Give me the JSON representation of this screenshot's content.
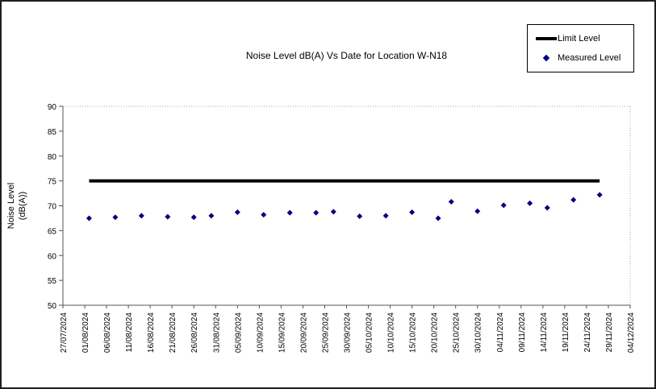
{
  "chart_data": {
    "type": "scatter",
    "title": "Noise Level dB(A) Vs Date for Location W-N18",
    "xlabel": "",
    "ylabel_lines": [
      "Noise Level",
      "(dB(A))"
    ],
    "ylim": [
      50,
      90
    ],
    "ytick_labels": [
      "50",
      "55",
      "60",
      "65",
      "70",
      "75",
      "80",
      "85",
      "90"
    ],
    "x_axis_start": "27/07/2024",
    "x_axis_end": "04/12/2024",
    "x_tick_labels": [
      "27/07/2024",
      "01/08/2024",
      "06/08/2024",
      "11/08/2024",
      "16/08/2024",
      "21/08/2024",
      "26/08/2024",
      "31/08/2024",
      "05/09/2024",
      "10/09/2024",
      "15/09/2024",
      "20/09/2024",
      "25/09/2024",
      "30/09/2024",
      "05/10/2024",
      "10/10/2024",
      "15/10/2024",
      "20/10/2024",
      "25/10/2024",
      "30/10/2024",
      "04/11/2024",
      "09/11/2024",
      "14/11/2024",
      "19/11/2024",
      "24/11/2024",
      "29/11/2024",
      "04/12/2024"
    ],
    "grid": false,
    "legend_position": "top-right",
    "series": [
      {
        "name": "Limit Level",
        "render": "line",
        "color": "#000000",
        "x": [
          "02/08/2024",
          "27/11/2024"
        ],
        "values": [
          75,
          75
        ]
      },
      {
        "name": "Measured Level",
        "render": "scatter",
        "marker": "diamond",
        "color": "#000080",
        "x": [
          "02/08/2024",
          "08/08/2024",
          "14/08/2024",
          "20/08/2024",
          "26/08/2024",
          "30/08/2024",
          "05/09/2024",
          "11/09/2024",
          "17/09/2024",
          "23/09/2024",
          "27/09/2024",
          "03/10/2024",
          "09/10/2024",
          "15/10/2024",
          "21/10/2024",
          "24/10/2024",
          "30/10/2024",
          "05/11/2024",
          "11/11/2024",
          "15/11/2024",
          "21/11/2024",
          "27/11/2024"
        ],
        "values": [
          67.5,
          67.7,
          68.0,
          67.8,
          67.7,
          68.0,
          68.7,
          68.2,
          68.6,
          68.6,
          68.8,
          67.9,
          68.0,
          68.7,
          67.5,
          70.8,
          68.9,
          70.1,
          70.5,
          69.6,
          71.2,
          72.2
        ]
      }
    ]
  }
}
